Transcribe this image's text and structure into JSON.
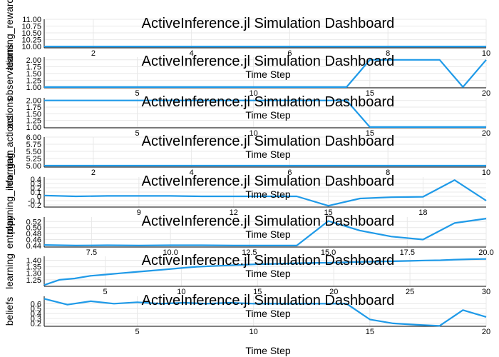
{
  "chart_data": [
    {
      "type": "line",
      "title": "ActiveInference.jl Simulation Dashboard",
      "ylabel": "learning_reward",
      "xlabel": "",
      "x": [
        1,
        2,
        3,
        4,
        5,
        6,
        7,
        8,
        9,
        10
      ],
      "series": [
        {
          "values": [
            10,
            10,
            10,
            10,
            10,
            10,
            10,
            10,
            10,
            10
          ]
        }
      ],
      "xlim": [
        1,
        10
      ],
      "ylim": [
        9.95,
        11
      ],
      "xticks": [
        2,
        4,
        6,
        8,
        10
      ],
      "yticks": [
        10.0,
        10.25,
        10.5,
        10.75,
        11.0
      ],
      "ytick_labels": [
        "10.00",
        "10.25",
        "10.50",
        "10.75",
        "11.00"
      ],
      "grid": true
    },
    {
      "type": "line",
      "title": "ActiveInference.jl Simulation Dashboard",
      "ylabel": "observations",
      "xlabel": "Time Step",
      "x": [
        1,
        2,
        3,
        4,
        5,
        6,
        7,
        8,
        9,
        10,
        11,
        12,
        13,
        14,
        15,
        16,
        17,
        18,
        19,
        20
      ],
      "series": [
        {
          "values": [
            1,
            1,
            1,
            1,
            1,
            1,
            1,
            1,
            1,
            1,
            1,
            1,
            1,
            1,
            2,
            2,
            2,
            2,
            1,
            2
          ]
        }
      ],
      "xlim": [
        1,
        20
      ],
      "ylim": [
        0.97,
        2.1
      ],
      "xticks": [
        5,
        10,
        15,
        20
      ],
      "yticks": [
        1.0,
        1.25,
        1.5,
        1.75,
        2.0
      ],
      "ytick_labels": [
        "1.00",
        "1.25",
        "1.50",
        "1.75",
        "2.00"
      ],
      "grid": true
    },
    {
      "type": "line",
      "title": "ActiveInference.jl Simulation Dashboard",
      "ylabel": "actions",
      "xlabel": "Time Step",
      "x": [
        1,
        2,
        3,
        4,
        5,
        6,
        7,
        8,
        9,
        10,
        11,
        12,
        13,
        14,
        15,
        16,
        17,
        18,
        19,
        20
      ],
      "series": [
        {
          "values": [
            2,
            2,
            2,
            2,
            2,
            2,
            2,
            2,
            2,
            2,
            2,
            2,
            2,
            2,
            1,
            1,
            1,
            1,
            1,
            1
          ]
        }
      ],
      "xlim": [
        1,
        20
      ],
      "ylim": [
        0.97,
        2.1
      ],
      "xticks": [
        5,
        10,
        15,
        20
      ],
      "yticks": [
        1.0,
        1.25,
        1.5,
        1.75,
        2.0
      ],
      "ytick_labels": [
        "1.00",
        "1.25",
        "1.50",
        "1.75",
        "2.00"
      ],
      "grid": true
    },
    {
      "type": "line",
      "title": "ActiveInference.jl Simulation Dashboard",
      "ylabel": "learning_actions",
      "xlabel": "Time Step",
      "x": [
        1,
        2,
        3,
        4,
        5,
        6,
        7,
        8,
        9,
        10
      ],
      "series": [
        {
          "values": [
            5,
            5,
            5,
            5,
            5,
            5,
            5,
            5,
            5,
            5
          ]
        }
      ],
      "xlim": [
        1,
        10
      ],
      "ylim": [
        4.95,
        6
      ],
      "xticks": [
        2,
        4,
        6,
        8,
        10
      ],
      "yticks": [
        5.0,
        5.25,
        5.5,
        5.75,
        6.0
      ],
      "ytick_labels": [
        "5.00",
        "5.25",
        "5.50",
        "5.75",
        "6.00"
      ],
      "grid": true
    },
    {
      "type": "line",
      "title": "ActiveInference.jl Simulation Dashboard",
      "ylabel": "planning_info_gain",
      "xlabel": "Time Step",
      "x": [
        6,
        7,
        8,
        9,
        10,
        11,
        12,
        13,
        14,
        15,
        16,
        17,
        18,
        19,
        20
      ],
      "series": [
        {
          "values": [
            0.02,
            0.0,
            0.01,
            0.01,
            0.01,
            0.0,
            0.0,
            0.0,
            0.0,
            -0.22,
            -0.05,
            -0.02,
            -0.01,
            0.38,
            -0.1
          ]
        }
      ],
      "xlim": [
        6,
        20
      ],
      "ylim": [
        -0.25,
        0.45
      ],
      "xticks": [
        9,
        12,
        15,
        18
      ],
      "yticks": [
        -0.2,
        -0.1,
        0.0,
        0.1,
        0.2,
        0.3,
        0.4
      ],
      "ytick_labels": [
        "-0.2",
        "-0.1",
        "0",
        "0.1",
        "0.2",
        "0.3",
        "0.4"
      ],
      "grid": true
    },
    {
      "type": "line",
      "title": "ActiveInference.jl Simulation Dashboard",
      "ylabel": "entropy",
      "xlabel": "Time Step",
      "x": [
        6,
        7,
        8,
        9,
        10,
        11,
        12,
        13,
        14,
        15,
        16,
        17,
        18,
        19,
        20
      ],
      "series": [
        {
          "values": [
            0.442,
            0.44,
            0.441,
            0.44,
            0.441,
            0.441,
            0.44,
            0.44,
            0.44,
            0.522,
            0.49,
            0.47,
            0.46,
            0.515,
            0.53
          ]
        }
      ],
      "xlim": [
        6,
        20
      ],
      "ylim": [
        0.435,
        0.535
      ],
      "xticks": [
        7.5,
        10.0,
        12.5,
        15.0,
        17.5,
        20.0
      ],
      "yticks": [
        0.44,
        0.46,
        0.48,
        0.5,
        0.52
      ],
      "ytick_labels": [
        "0.44",
        "0.46",
        "0.48",
        "0.50",
        "0.52"
      ],
      "grid": true
    },
    {
      "type": "line",
      "title": "ActiveInference.jl Simulation Dashboard",
      "ylabel": "learning",
      "xlabel": "Time Step",
      "x": [
        1,
        2,
        3,
        4,
        5,
        6,
        7,
        8,
        9,
        10,
        11,
        12,
        13,
        14,
        15,
        16,
        17,
        18,
        19,
        20,
        21,
        22,
        23,
        24,
        25,
        26,
        27,
        28,
        29,
        30
      ],
      "series": [
        {
          "values": [
            1.21,
            1.25,
            1.26,
            1.28,
            1.29,
            1.3,
            1.31,
            1.32,
            1.33,
            1.34,
            1.35,
            1.355,
            1.36,
            1.365,
            1.37,
            1.372,
            1.375,
            1.378,
            1.38,
            1.382,
            1.385,
            1.388,
            1.39,
            1.392,
            1.395,
            1.398,
            1.4,
            1.405,
            1.408,
            1.41
          ]
        }
      ],
      "xlim": [
        1,
        30
      ],
      "ylim": [
        1.2,
        1.43
      ],
      "xticks": [
        5,
        10,
        15,
        20,
        25,
        30
      ],
      "yticks": [
        1.25,
        1.3,
        1.35,
        1.4
      ],
      "ytick_labels": [
        "1.25",
        "1.30",
        "1.35",
        "1.40"
      ],
      "grid": true
    },
    {
      "type": "line",
      "title": "ActiveInference.jl Simulation Dashboard",
      "ylabel": "beliefs",
      "xlabel": "Time Step",
      "x": [
        1,
        2,
        3,
        4,
        5,
        6,
        7,
        8,
        9,
        10,
        11,
        12,
        13,
        14,
        15,
        16,
        17,
        18,
        19,
        20
      ],
      "series": [
        {
          "values": [
            0.7,
            0.58,
            0.65,
            0.6,
            0.63,
            0.6,
            0.62,
            0.6,
            0.62,
            0.6,
            0.6,
            0.6,
            0.6,
            0.6,
            0.28,
            0.2,
            0.17,
            0.15,
            0.47,
            0.33
          ]
        }
      ],
      "xlim": [
        1,
        20
      ],
      "ylim": [
        0.14,
        0.75
      ],
      "xticks": [
        5,
        10,
        15,
        20
      ],
      "yticks": [
        0.2,
        0.3,
        0.4,
        0.5,
        0.6
      ],
      "ytick_labels": [
        "0.2",
        "0.3",
        "0.4",
        "0.5",
        "0.6"
      ],
      "grid": true
    }
  ],
  "bottom_xlabel": "Time Step",
  "colors": {
    "series": "#1f9ae8",
    "grid": "#e8e8e8",
    "axis": "#000000"
  }
}
